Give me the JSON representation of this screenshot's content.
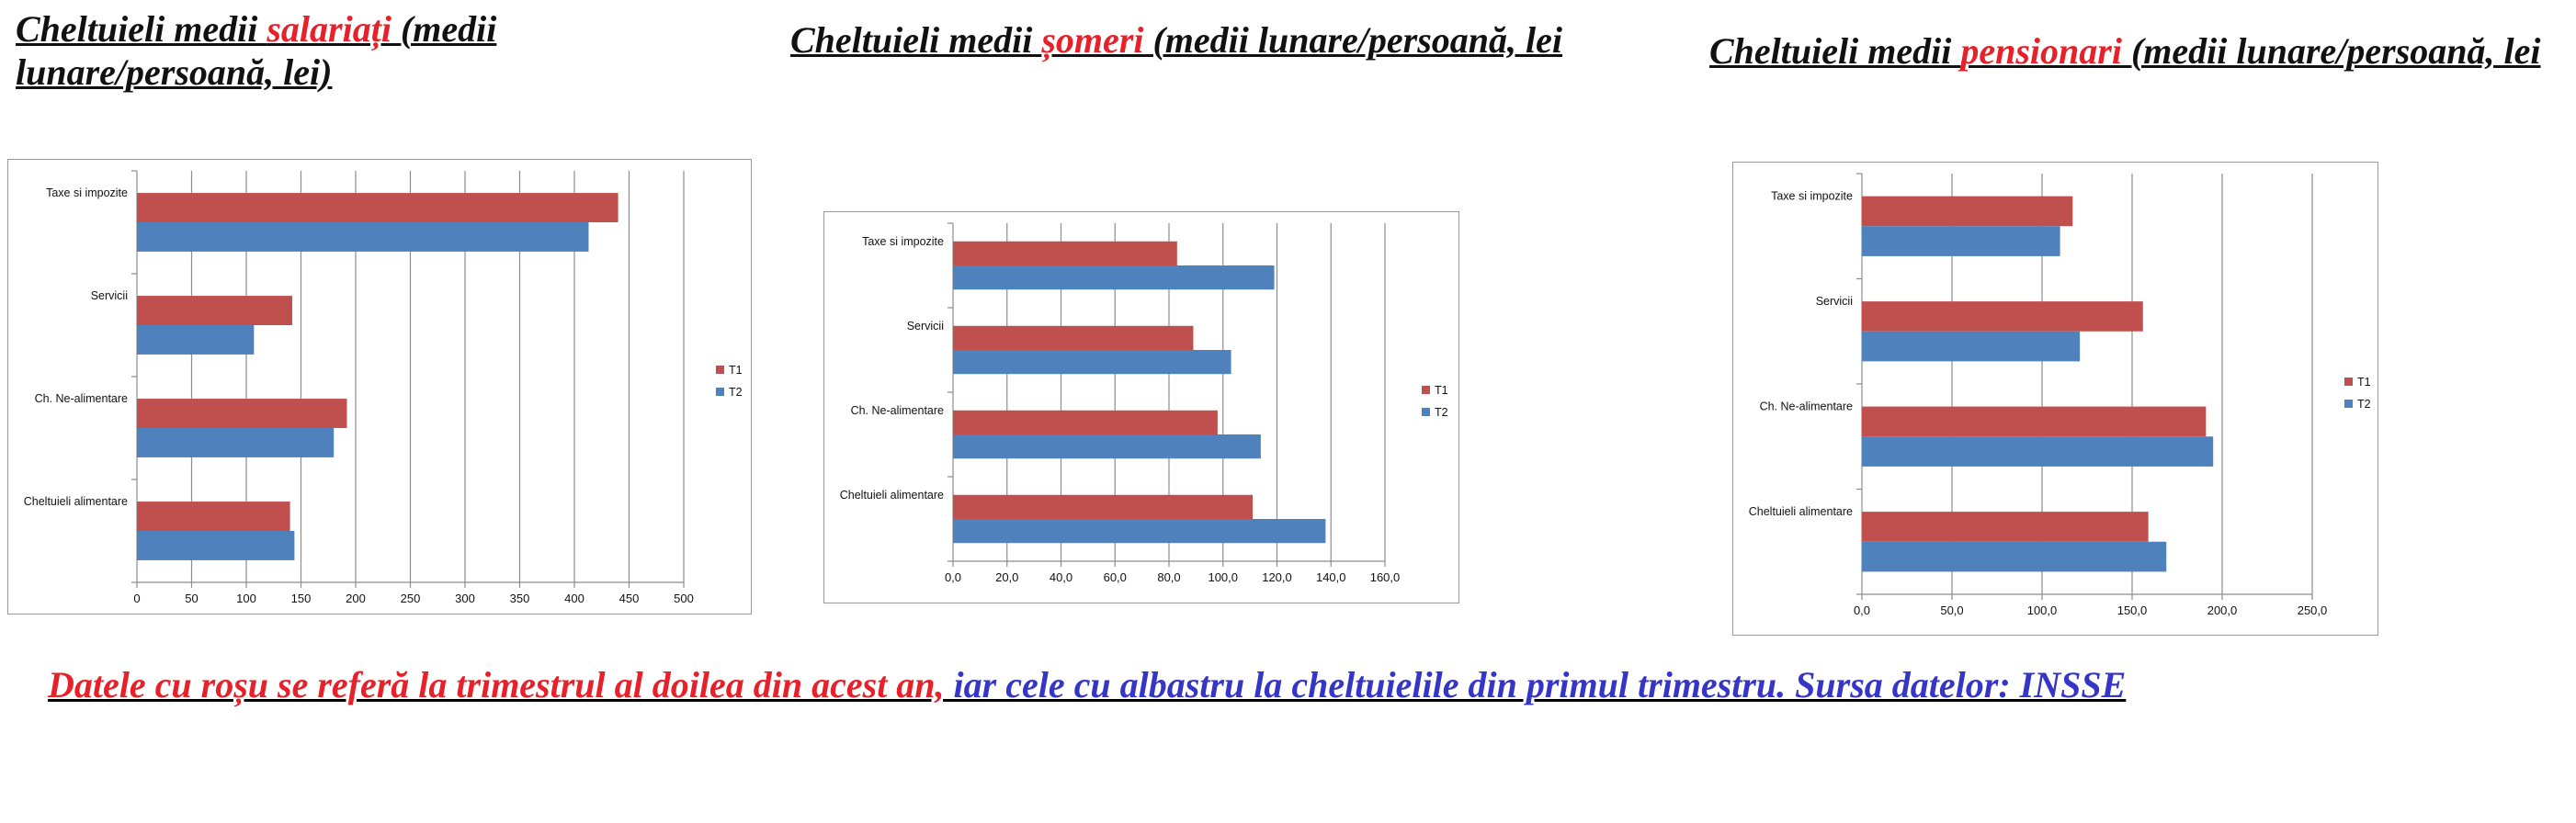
{
  "titles": [
    {
      "prefix": "Cheltuieli medii ",
      "highlight": "salariați ",
      "suffix": "(medii lunare/persoană, lei)"
    },
    {
      "prefix": "Cheltuieli medii ",
      "highlight": "șomeri ",
      "suffix": "(medii lunare/persoană, lei"
    },
    {
      "prefix": "Cheltuieli medii ",
      "highlight": "pensionari ",
      "suffix": "(medii lunare/persoană, lei"
    }
  ],
  "footer": {
    "red_text": "Datele cu roșu se referă la trimestrul al doilea din acest an,",
    "blue_text": " iar cele cu albastru la cheltuielile din primul trimestru. Sursa datelor: INSSE"
  },
  "colors": {
    "T1": "#c0504d",
    "T2": "#4f81bd",
    "highlight": "#e8202a",
    "footer_blue": "#3535c8"
  },
  "chart_data": [
    {
      "type": "bar",
      "orientation": "horizontal",
      "categories": [
        "Taxe si impozite",
        "Servicii",
        "Ch. Ne-alimentare",
        "Cheltuieli alimentare"
      ],
      "series": [
        {
          "name": "T1",
          "values": [
            440,
            142,
            192,
            140
          ]
        },
        {
          "name": "T2",
          "values": [
            413,
            107,
            180,
            144
          ]
        }
      ],
      "xlim": [
        0,
        500
      ],
      "ticks": [
        "0",
        "50",
        "100",
        "150",
        "200",
        "250",
        "300",
        "350",
        "400",
        "450",
        "500"
      ],
      "grid": true,
      "legend": "right"
    },
    {
      "type": "bar",
      "orientation": "horizontal",
      "categories": [
        "Taxe si impozite",
        "Servicii",
        "Ch. Ne-alimentare",
        "Cheltuieli alimentare"
      ],
      "series": [
        {
          "name": "T1",
          "values": [
            83,
            89,
            98,
            111
          ]
        },
        {
          "name": "T2",
          "values": [
            119,
            103,
            114,
            138
          ]
        }
      ],
      "xlim": [
        0,
        160
      ],
      "ticks": [
        "0,0",
        "20,0",
        "40,0",
        "60,0",
        "80,0",
        "100,0",
        "120,0",
        "140,0",
        "160,0"
      ],
      "grid": true,
      "legend": "right"
    },
    {
      "type": "bar",
      "orientation": "horizontal",
      "categories": [
        "Taxe si impozite",
        "Servicii",
        "Ch. Ne-alimentare",
        "Cheltuieli alimentare"
      ],
      "series": [
        {
          "name": "T1",
          "values": [
            117,
            156,
            191,
            159
          ]
        },
        {
          "name": "T2",
          "values": [
            110,
            121,
            195,
            169
          ]
        }
      ],
      "xlim": [
        0,
        250
      ],
      "ticks": [
        "0,0",
        "50,0",
        "100,0",
        "150,0",
        "200,0",
        "250,0"
      ],
      "grid": true,
      "legend": "right"
    }
  ]
}
